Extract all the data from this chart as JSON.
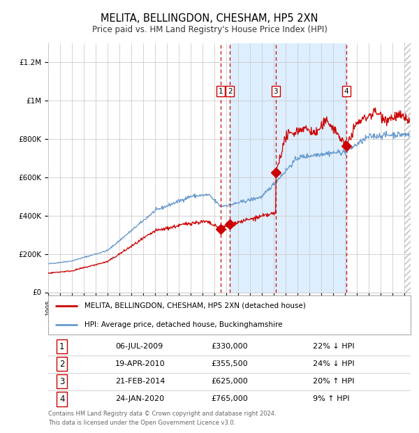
{
  "title": "MELITA, BELLINGDON, CHESHAM, HP5 2XN",
  "subtitle": "Price paid vs. HM Land Registry's House Price Index (HPI)",
  "footer1": "Contains HM Land Registry data © Crown copyright and database right 2024.",
  "footer2": "This data is licensed under the Open Government Licence v3.0.",
  "legend_red": "MELITA, BELLINGDON, CHESHAM, HP5 2XN (detached house)",
  "legend_blue": "HPI: Average price, detached house, Buckinghamshire",
  "transactions": [
    {
      "num": 1,
      "date": "2009-07-06",
      "price": 330000,
      "pct": "22%",
      "dir": "↓",
      "x_year": 2009.51
    },
    {
      "num": 2,
      "date": "2010-04-19",
      "price": 355500,
      "pct": "24%",
      "dir": "↓",
      "x_year": 2010.3
    },
    {
      "num": 3,
      "date": "2014-02-21",
      "price": 625000,
      "pct": "20%",
      "dir": "↑",
      "x_year": 2014.14
    },
    {
      "num": 4,
      "date": "2020-01-24",
      "price": 765000,
      "pct": "9%",
      "dir": "↑",
      "x_year": 2020.07
    }
  ],
  "red_color": "#cc0000",
  "blue_color": "#6699cc",
  "shade_color": "#ddeeff",
  "vline_color": "#cc0000",
  "grid_color": "#cccccc",
  "bg_color": "#ffffff",
  "ylim": [
    0,
    1300000
  ],
  "xlim_start": 1995.0,
  "xlim_end": 2025.5,
  "date_labels": {
    "2009-07-06": "06-JUL-2009",
    "2010-04-19": "19-APR-2010",
    "2014-02-21": "21-FEB-2014",
    "2020-01-24": "24-JAN-2020"
  }
}
